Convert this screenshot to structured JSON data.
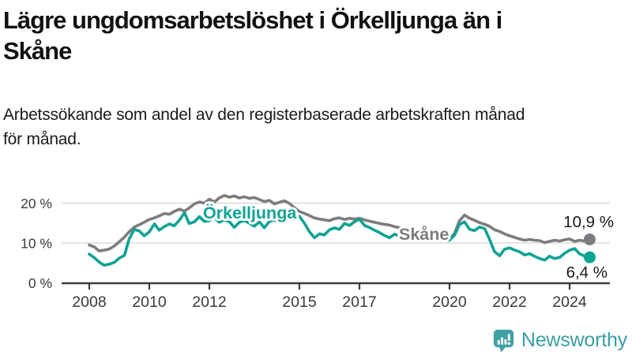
{
  "header": {
    "title": "Lägre ungdomsarbetslöshet i Örkelljunga än i\nSkåne",
    "subtitle": "Arbetssökande som andel av den registerbaserade arbetskraften månad\nför månad."
  },
  "chart_data": {
    "type": "line",
    "title": "Lägre ungdomsarbetslöshet i Örkelljunga än i Skåne",
    "subtitle": "Arbetssökande som andel av den registerbaserade arbetskraften månad för månad.",
    "x_unit": "year (monthly observations, 2008–2024)",
    "ylim": [
      0,
      23
    ],
    "xlim": [
      2008,
      2025.4
    ],
    "grid": "horizontal",
    "legend": "inline-labels-on-lines",
    "yticks": {
      "values": [
        0,
        10,
        20
      ],
      "labels": [
        "0 %",
        "10 %",
        "20 %"
      ]
    },
    "xticks": {
      "values": [
        2008,
        2010,
        2012,
        2015,
        2017,
        2020,
        2022,
        2024
      ],
      "labels": [
        "2008",
        "2010",
        "2012",
        "2015",
        "2017",
        "2020",
        "2022",
        "2024"
      ]
    },
    "x": [
      2008,
      2008.17,
      2008.33,
      2008.5,
      2008.67,
      2008.83,
      2009,
      2009.17,
      2009.33,
      2009.5,
      2009.67,
      2009.83,
      2010,
      2010.17,
      2010.33,
      2010.5,
      2010.67,
      2010.83,
      2011,
      2011.17,
      2011.33,
      2011.5,
      2011.67,
      2011.83,
      2012,
      2012.17,
      2012.33,
      2012.5,
      2012.67,
      2012.83,
      2013,
      2013.17,
      2013.33,
      2013.5,
      2013.67,
      2013.83,
      2014,
      2014.17,
      2014.33,
      2014.5,
      2014.67,
      2014.83,
      2015,
      2015.17,
      2015.33,
      2015.5,
      2015.67,
      2015.83,
      2016,
      2016.17,
      2016.33,
      2016.5,
      2016.67,
      2016.83,
      2017,
      2017.17,
      2017.33,
      2017.5,
      2017.67,
      2017.83,
      2018,
      2018.17,
      2018.33,
      2018.5,
      2018.67,
      2018.83,
      2019,
      2019.17,
      2019.33,
      2019.5,
      2019.67,
      2019.83,
      2020,
      2020.17,
      2020.33,
      2020.5,
      2020.67,
      2020.83,
      2021,
      2021.17,
      2021.33,
      2021.5,
      2021.67,
      2021.83,
      2022,
      2022.17,
      2022.33,
      2022.5,
      2022.67,
      2022.83,
      2023,
      2023.17,
      2023.33,
      2023.5,
      2023.67,
      2023.83,
      2024,
      2024.17,
      2024.33,
      2024.5,
      2024.67
    ],
    "series": [
      {
        "name": "Skåne",
        "color": "#7c7c80",
        "end_label": "10,9 %",
        "end_value": 10.9,
        "values": [
          9.5,
          9.0,
          8.0,
          8.2,
          8.5,
          9.2,
          10.3,
          11.5,
          12.8,
          14.0,
          14.6,
          15.2,
          15.9,
          16.3,
          16.8,
          17.4,
          17.2,
          17.9,
          18.5,
          18.0,
          18.8,
          19.8,
          20.3,
          20.0,
          21.0,
          20.3,
          21.3,
          21.9,
          21.5,
          21.8,
          21.3,
          21.6,
          21.2,
          21.4,
          20.9,
          20.4,
          20.7,
          19.8,
          20.2,
          20.6,
          19.9,
          18.9,
          17.9,
          17.4,
          16.9,
          16.3,
          16.0,
          15.8,
          15.6,
          16.1,
          16.3,
          15.9,
          16.2,
          16.0,
          16.2,
          15.8,
          15.5,
          15.2,
          14.9,
          14.7,
          14.5,
          14.1,
          13.8,
          13.5,
          13.2,
          13.1,
          12.9,
          12.5,
          12.2,
          11.8,
          11.4,
          11.0,
          10.8,
          12.5,
          15.5,
          17.0,
          16.2,
          15.7,
          15.1,
          14.7,
          14.2,
          13.3,
          12.9,
          12.3,
          11.8,
          11.4,
          11.0,
          10.7,
          10.9,
          10.7,
          10.6,
          10.1,
          10.4,
          10.7,
          10.5,
          10.8,
          11.0,
          10.4,
          10.7,
          10.5,
          10.9
        ]
      },
      {
        "name": "Örkelljunga",
        "color": "#10a294",
        "end_label": "6,4 %",
        "end_value": 6.4,
        "values": [
          7.2,
          6.3,
          5.2,
          4.4,
          4.7,
          5.1,
          6.2,
          6.9,
          11.0,
          13.4,
          13.0,
          11.8,
          12.8,
          14.8,
          13.2,
          14.1,
          14.8,
          14.3,
          15.7,
          17.6,
          14.9,
          15.3,
          16.6,
          15.4,
          15.6,
          16.3,
          15.2,
          15.8,
          15.3,
          13.9,
          15.2,
          15.6,
          15.0,
          14.2,
          15.3,
          13.8,
          15.4,
          15.8,
          15.1,
          15.6,
          16.2,
          15.9,
          16.7,
          14.9,
          12.9,
          11.3,
          12.3,
          12.0,
          13.3,
          13.8,
          13.4,
          14.9,
          14.4,
          15.3,
          16.0,
          14.4,
          13.9,
          13.2,
          12.6,
          11.9,
          11.3,
          12.2,
          11.6,
          12.0,
          11.5,
          11.8,
          11.4,
          11.6,
          11.2,
          11.0,
          10.8,
          10.6,
          10.7,
          12.0,
          14.6,
          15.3,
          13.4,
          13.1,
          14.0,
          13.6,
          11.0,
          7.8,
          6.8,
          8.4,
          8.8,
          8.2,
          7.8,
          7.0,
          7.3,
          6.7,
          6.1,
          5.7,
          6.7,
          6.1,
          6.4,
          7.4,
          8.2,
          8.6,
          7.3,
          6.7,
          6.4
        ]
      }
    ]
  },
  "footer": {
    "brand": "Newsworthy"
  },
  "colors": {
    "accent_teal": "#10a294",
    "series_gray": "#7c7c80",
    "grid": "#dadada",
    "axis": "#3c3c3c",
    "tick_text": "#3a3a3a",
    "end_label_text": "#1a1a1a",
    "logo_teal": "#3fa1a4"
  }
}
